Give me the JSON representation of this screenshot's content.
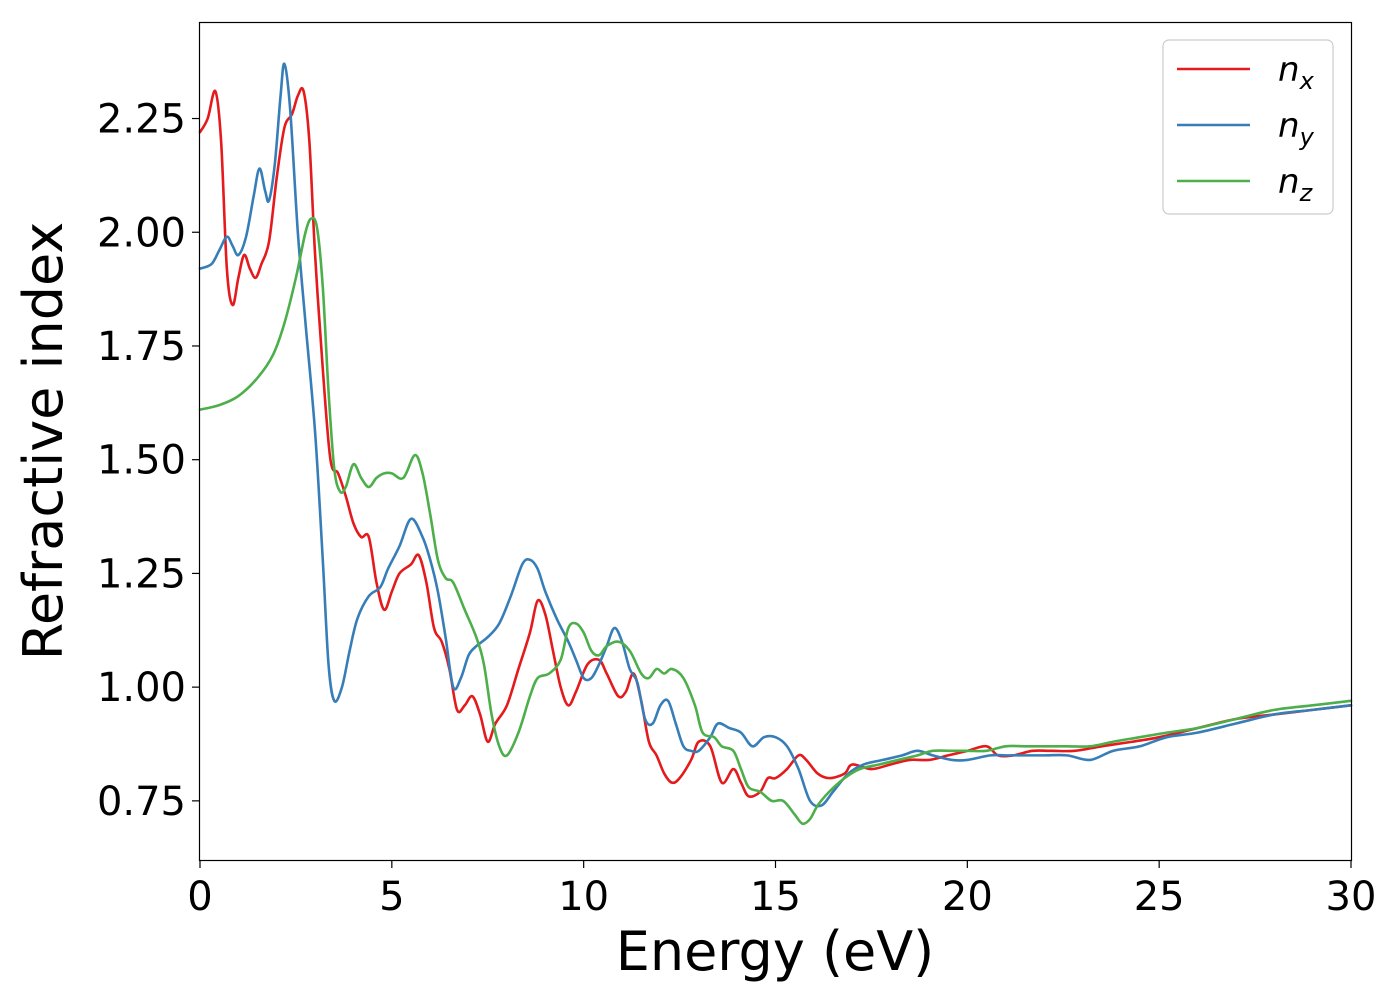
{
  "chart_data": {
    "type": "line",
    "xlabel": "Energy (eV)",
    "ylabel": "Refractive index",
    "xlim": [
      0,
      30
    ],
    "ylim": [
      0.62,
      2.46
    ],
    "xticks": [
      0,
      5,
      10,
      15,
      20,
      25,
      30
    ],
    "xtick_labels": [
      "0",
      "5",
      "10",
      "15",
      "20",
      "25",
      "30"
    ],
    "yticks": [
      0.75,
      1.0,
      1.25,
      1.5,
      1.75,
      2.0,
      2.25
    ],
    "ytick_labels": [
      "0.75",
      "1.00",
      "1.25",
      "1.50",
      "1.75",
      "2.00",
      "2.25"
    ],
    "grid": false,
    "legend_position": "top-right",
    "series": [
      {
        "name": "n",
        "subscript": "x",
        "color": "#e41a1c",
        "points": [
          [
            0,
            2.22
          ],
          [
            0.2,
            2.25
          ],
          [
            0.4,
            2.31
          ],
          [
            0.55,
            2.2
          ],
          [
            0.7,
            1.92
          ],
          [
            0.85,
            1.84
          ],
          [
            1.0,
            1.9
          ],
          [
            1.15,
            1.95
          ],
          [
            1.3,
            1.92
          ],
          [
            1.45,
            1.9
          ],
          [
            1.6,
            1.93
          ],
          [
            1.8,
            1.98
          ],
          [
            2.0,
            2.12
          ],
          [
            2.2,
            2.23
          ],
          [
            2.4,
            2.26
          ],
          [
            2.55,
            2.3
          ],
          [
            2.7,
            2.31
          ],
          [
            2.85,
            2.2
          ],
          [
            3.0,
            1.95
          ],
          [
            3.2,
            1.7
          ],
          [
            3.4,
            1.5
          ],
          [
            3.6,
            1.47
          ],
          [
            3.8,
            1.42
          ],
          [
            4.0,
            1.36
          ],
          [
            4.2,
            1.33
          ],
          [
            4.4,
            1.33
          ],
          [
            4.6,
            1.23
          ],
          [
            4.8,
            1.17
          ],
          [
            5.0,
            1.21
          ],
          [
            5.2,
            1.25
          ],
          [
            5.5,
            1.27
          ],
          [
            5.7,
            1.29
          ],
          [
            5.9,
            1.23
          ],
          [
            6.1,
            1.13
          ],
          [
            6.3,
            1.1
          ],
          [
            6.5,
            1.04
          ],
          [
            6.7,
            0.95
          ],
          [
            6.9,
            0.96
          ],
          [
            7.1,
            0.98
          ],
          [
            7.3,
            0.94
          ],
          [
            7.5,
            0.88
          ],
          [
            7.7,
            0.92
          ],
          [
            8.0,
            0.96
          ],
          [
            8.3,
            1.04
          ],
          [
            8.6,
            1.12
          ],
          [
            8.8,
            1.19
          ],
          [
            9.0,
            1.16
          ],
          [
            9.2,
            1.08
          ],
          [
            9.4,
            1.0
          ],
          [
            9.6,
            0.96
          ],
          [
            9.8,
            0.99
          ],
          [
            10.1,
            1.05
          ],
          [
            10.4,
            1.06
          ],
          [
            10.6,
            1.03
          ],
          [
            10.9,
            0.98
          ],
          [
            11.1,
            0.99
          ],
          [
            11.3,
            1.03
          ],
          [
            11.5,
            0.97
          ],
          [
            11.7,
            0.88
          ],
          [
            11.9,
            0.85
          ],
          [
            12.1,
            0.81
          ],
          [
            12.3,
            0.79
          ],
          [
            12.5,
            0.8
          ],
          [
            12.8,
            0.84
          ],
          [
            13.0,
            0.88
          ],
          [
            13.3,
            0.87
          ],
          [
            13.6,
            0.79
          ],
          [
            13.9,
            0.82
          ],
          [
            14.1,
            0.79
          ],
          [
            14.3,
            0.76
          ],
          [
            14.6,
            0.77
          ],
          [
            14.8,
            0.8
          ],
          [
            15.0,
            0.8
          ],
          [
            15.3,
            0.82
          ],
          [
            15.6,
            0.85
          ],
          [
            15.8,
            0.84
          ],
          [
            16.1,
            0.81
          ],
          [
            16.4,
            0.8
          ],
          [
            16.8,
            0.81
          ],
          [
            17.0,
            0.83
          ],
          [
            17.5,
            0.82
          ],
          [
            18.0,
            0.83
          ],
          [
            18.5,
            0.84
          ],
          [
            19.0,
            0.84
          ],
          [
            19.5,
            0.85
          ],
          [
            20.0,
            0.86
          ],
          [
            20.5,
            0.87
          ],
          [
            20.8,
            0.85
          ],
          [
            21.2,
            0.85
          ],
          [
            21.7,
            0.86
          ],
          [
            22.2,
            0.86
          ],
          [
            22.8,
            0.86
          ],
          [
            23.5,
            0.87
          ],
          [
            24.3,
            0.88
          ],
          [
            25.0,
            0.89
          ],
          [
            26.0,
            0.91
          ],
          [
            27.0,
            0.93
          ],
          [
            28.0,
            0.94
          ],
          [
            29.0,
            0.95
          ],
          [
            30.0,
            0.96
          ]
        ]
      },
      {
        "name": "n",
        "subscript": "y",
        "color": "#377eb8",
        "points": [
          [
            0,
            1.92
          ],
          [
            0.3,
            1.93
          ],
          [
            0.5,
            1.96
          ],
          [
            0.7,
            1.99
          ],
          [
            0.85,
            1.97
          ],
          [
            1.0,
            1.95
          ],
          [
            1.2,
            1.99
          ],
          [
            1.4,
            2.08
          ],
          [
            1.55,
            2.14
          ],
          [
            1.7,
            2.09
          ],
          [
            1.8,
            2.07
          ],
          [
            1.95,
            2.15
          ],
          [
            2.1,
            2.3
          ],
          [
            2.2,
            2.37
          ],
          [
            2.35,
            2.27
          ],
          [
            2.55,
            2.0
          ],
          [
            2.75,
            1.8
          ],
          [
            3.0,
            1.56
          ],
          [
            3.2,
            1.28
          ],
          [
            3.35,
            1.05
          ],
          [
            3.5,
            0.97
          ],
          [
            3.7,
            1.0
          ],
          [
            3.9,
            1.08
          ],
          [
            4.1,
            1.15
          ],
          [
            4.4,
            1.2
          ],
          [
            4.7,
            1.22
          ],
          [
            4.9,
            1.26
          ],
          [
            5.2,
            1.31
          ],
          [
            5.5,
            1.37
          ],
          [
            5.8,
            1.33
          ],
          [
            6.0,
            1.28
          ],
          [
            6.2,
            1.21
          ],
          [
            6.4,
            1.11
          ],
          [
            6.6,
            1.0
          ],
          [
            6.8,
            1.02
          ],
          [
            7.0,
            1.07
          ],
          [
            7.2,
            1.09
          ],
          [
            7.5,
            1.11
          ],
          [
            7.8,
            1.14
          ],
          [
            8.1,
            1.2
          ],
          [
            8.4,
            1.27
          ],
          [
            8.6,
            1.28
          ],
          [
            8.8,
            1.26
          ],
          [
            9.0,
            1.21
          ],
          [
            9.3,
            1.15
          ],
          [
            9.6,
            1.1
          ],
          [
            9.8,
            1.06
          ],
          [
            10.0,
            1.02
          ],
          [
            10.2,
            1.02
          ],
          [
            10.4,
            1.05
          ],
          [
            10.6,
            1.09
          ],
          [
            10.8,
            1.13
          ],
          [
            11.0,
            1.1
          ],
          [
            11.2,
            1.04
          ],
          [
            11.4,
            1.01
          ],
          [
            11.6,
            0.93
          ],
          [
            11.8,
            0.92
          ],
          [
            12.0,
            0.96
          ],
          [
            12.2,
            0.97
          ],
          [
            12.4,
            0.92
          ],
          [
            12.6,
            0.87
          ],
          [
            12.8,
            0.86
          ],
          [
            13.0,
            0.86
          ],
          [
            13.3,
            0.89
          ],
          [
            13.5,
            0.92
          ],
          [
            13.8,
            0.91
          ],
          [
            14.1,
            0.9
          ],
          [
            14.4,
            0.87
          ],
          [
            14.7,
            0.89
          ],
          [
            15.0,
            0.89
          ],
          [
            15.3,
            0.87
          ],
          [
            15.6,
            0.82
          ],
          [
            15.9,
            0.75
          ],
          [
            16.2,
            0.74
          ],
          [
            16.5,
            0.77
          ],
          [
            16.9,
            0.81
          ],
          [
            17.3,
            0.83
          ],
          [
            17.8,
            0.84
          ],
          [
            18.3,
            0.85
          ],
          [
            18.7,
            0.86
          ],
          [
            19.1,
            0.85
          ],
          [
            19.6,
            0.84
          ],
          [
            20.0,
            0.84
          ],
          [
            20.6,
            0.85
          ],
          [
            21.0,
            0.85
          ],
          [
            21.5,
            0.85
          ],
          [
            22.0,
            0.85
          ],
          [
            22.6,
            0.85
          ],
          [
            23.2,
            0.84
          ],
          [
            23.8,
            0.86
          ],
          [
            24.5,
            0.87
          ],
          [
            25.2,
            0.89
          ],
          [
            26.0,
            0.9
          ],
          [
            27.0,
            0.92
          ],
          [
            28.0,
            0.94
          ],
          [
            29.0,
            0.95
          ],
          [
            30.0,
            0.96
          ]
        ]
      },
      {
        "name": "n",
        "subscript": "z",
        "color": "#4daf4a",
        "points": [
          [
            0,
            1.61
          ],
          [
            0.5,
            1.62
          ],
          [
            1.0,
            1.64
          ],
          [
            1.5,
            1.68
          ],
          [
            1.9,
            1.73
          ],
          [
            2.2,
            1.8
          ],
          [
            2.5,
            1.9
          ],
          [
            2.75,
            2.0
          ],
          [
            2.9,
            2.03
          ],
          [
            3.05,
            2.01
          ],
          [
            3.2,
            1.88
          ],
          [
            3.35,
            1.65
          ],
          [
            3.5,
            1.48
          ],
          [
            3.65,
            1.43
          ],
          [
            3.8,
            1.44
          ],
          [
            4.0,
            1.49
          ],
          [
            4.2,
            1.46
          ],
          [
            4.4,
            1.44
          ],
          [
            4.6,
            1.46
          ],
          [
            4.8,
            1.47
          ],
          [
            5.0,
            1.47
          ],
          [
            5.3,
            1.46
          ],
          [
            5.6,
            1.51
          ],
          [
            5.8,
            1.47
          ],
          [
            6.0,
            1.38
          ],
          [
            6.2,
            1.28
          ],
          [
            6.4,
            1.24
          ],
          [
            6.6,
            1.23
          ],
          [
            6.9,
            1.17
          ],
          [
            7.2,
            1.11
          ],
          [
            7.4,
            1.05
          ],
          [
            7.6,
            0.94
          ],
          [
            7.8,
            0.87
          ],
          [
            8.0,
            0.85
          ],
          [
            8.3,
            0.9
          ],
          [
            8.6,
            0.98
          ],
          [
            8.8,
            1.02
          ],
          [
            9.1,
            1.03
          ],
          [
            9.4,
            1.06
          ],
          [
            9.6,
            1.13
          ],
          [
            9.8,
            1.14
          ],
          [
            10.0,
            1.12
          ],
          [
            10.2,
            1.08
          ],
          [
            10.4,
            1.07
          ],
          [
            10.6,
            1.09
          ],
          [
            10.9,
            1.1
          ],
          [
            11.2,
            1.08
          ],
          [
            11.5,
            1.03
          ],
          [
            11.7,
            1.02
          ],
          [
            11.9,
            1.04
          ],
          [
            12.1,
            1.03
          ],
          [
            12.3,
            1.04
          ],
          [
            12.6,
            1.02
          ],
          [
            12.9,
            0.96
          ],
          [
            13.1,
            0.9
          ],
          [
            13.4,
            0.89
          ],
          [
            13.6,
            0.87
          ],
          [
            13.9,
            0.86
          ],
          [
            14.1,
            0.82
          ],
          [
            14.3,
            0.78
          ],
          [
            14.6,
            0.77
          ],
          [
            14.9,
            0.75
          ],
          [
            15.2,
            0.75
          ],
          [
            15.5,
            0.72
          ],
          [
            15.7,
            0.7
          ],
          [
            15.9,
            0.71
          ],
          [
            16.1,
            0.74
          ],
          [
            16.4,
            0.77
          ],
          [
            16.8,
            0.8
          ],
          [
            17.2,
            0.82
          ],
          [
            17.7,
            0.83
          ],
          [
            18.2,
            0.84
          ],
          [
            18.7,
            0.85
          ],
          [
            19.1,
            0.86
          ],
          [
            19.6,
            0.86
          ],
          [
            20.0,
            0.86
          ],
          [
            20.5,
            0.86
          ],
          [
            21.0,
            0.87
          ],
          [
            21.5,
            0.87
          ],
          [
            22.0,
            0.87
          ],
          [
            22.6,
            0.87
          ],
          [
            23.2,
            0.87
          ],
          [
            23.8,
            0.88
          ],
          [
            24.5,
            0.89
          ],
          [
            25.2,
            0.9
          ],
          [
            26.0,
            0.91
          ],
          [
            27.0,
            0.93
          ],
          [
            28.0,
            0.95
          ],
          [
            29.0,
            0.96
          ],
          [
            30.0,
            0.97
          ]
        ]
      }
    ]
  }
}
